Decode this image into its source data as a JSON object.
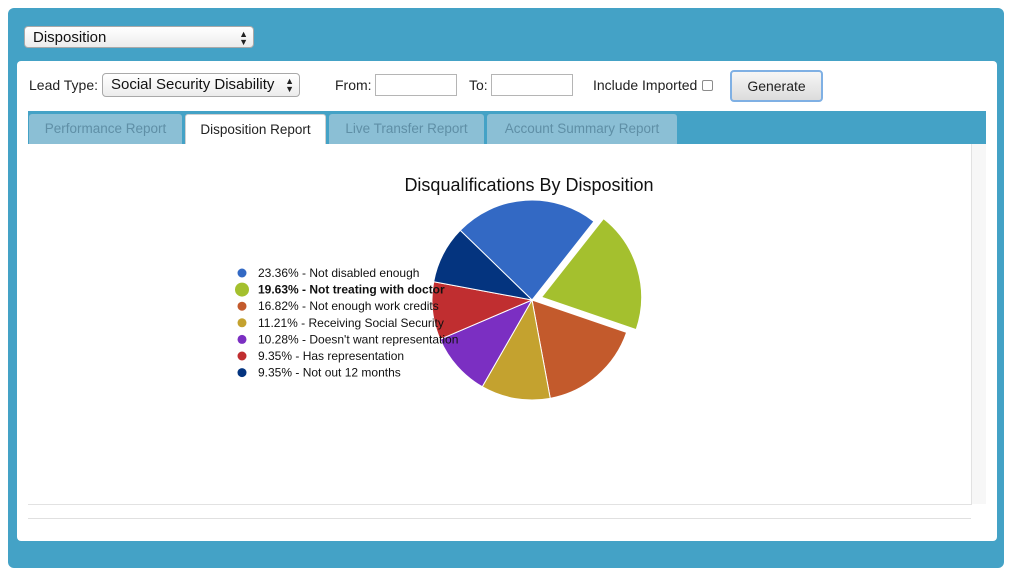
{
  "report_select": {
    "value": "Disposition"
  },
  "controls": {
    "lead_type_label": "Lead Type:",
    "lead_type_value": "Social Security Disability",
    "from_label": "From:",
    "from_value": "",
    "to_label": "To:",
    "to_value": "",
    "include_imported_label": "Include Imported",
    "include_imported_checked": false,
    "generate_label": "Generate"
  },
  "tabs": [
    {
      "label": "Performance Report",
      "active": false
    },
    {
      "label": "Disposition Report",
      "active": true
    },
    {
      "label": "Live Transfer Report",
      "active": false
    },
    {
      "label": "Account Summary Report",
      "active": false
    }
  ],
  "chart_data": {
    "type": "pie",
    "title": "Disqualifications By Disposition",
    "legend_position": "left",
    "highlighted": "Not treating with doctor",
    "slices": [
      {
        "label": "Not disabled enough",
        "value": 23.36,
        "display": "23.36% - Not disabled enough",
        "color": "#3369c4"
      },
      {
        "label": "Not treating with doctor",
        "value": 19.63,
        "display": "19.63% - Not treating with doctor",
        "color": "#a4c02e"
      },
      {
        "label": "Not enough work credits",
        "value": 16.82,
        "display": "16.82% - Not enough work credits",
        "color": "#c35a2c"
      },
      {
        "label": "Receiving Social Security",
        "value": 11.21,
        "display": "11.21% - Receiving Social Security",
        "color": "#c4a22f"
      },
      {
        "label": "Doesn't want representation",
        "value": 10.28,
        "display": "10.28% - Doesn't want representation",
        "color": "#7b2fc2"
      },
      {
        "label": "Has representation",
        "value": 9.35,
        "display": "9.35% - Has representation",
        "color": "#c02e30"
      },
      {
        "label": "Not out 12 months",
        "value": 9.35,
        "display": "9.35% - Not out 12 months",
        "color": "#04347f"
      }
    ]
  }
}
